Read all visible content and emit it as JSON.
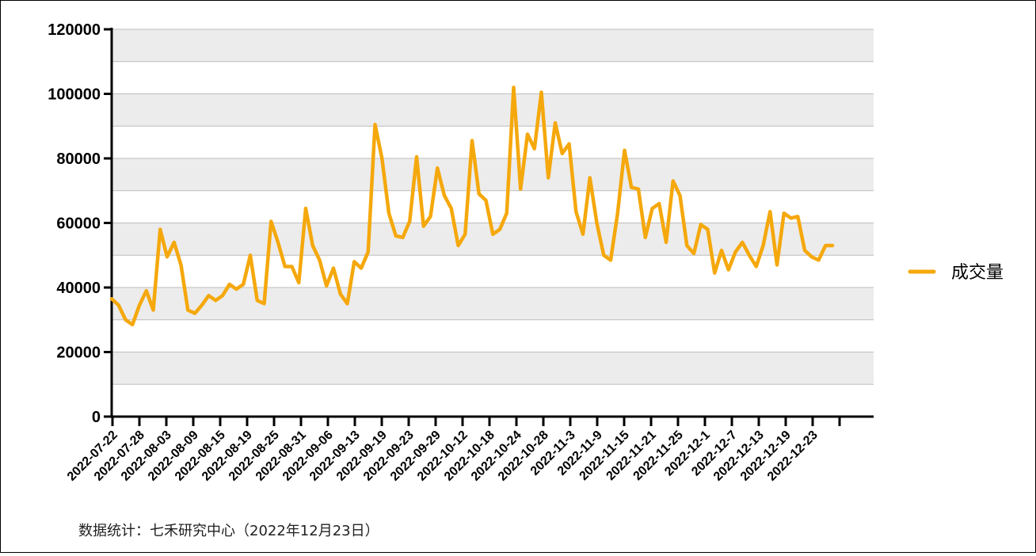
{
  "source_note": "数据统计：七禾研究中心（2022年12月23日）",
  "colors": {
    "line": "#F5A80C",
    "band": "#ECECEC",
    "grid": "#BDBDBD",
    "axis": "#000000"
  },
  "chart_data": {
    "type": "line",
    "title": "",
    "xlabel": "",
    "ylabel": "",
    "ylim": [
      0,
      120000
    ],
    "yticks": [
      0,
      20000,
      40000,
      60000,
      80000,
      100000,
      120000
    ],
    "grid": true,
    "legend_position": "right",
    "x_tick_labels": [
      "2022-07-22",
      "2022-07-28",
      "2022-08-03",
      "2022-08-09",
      "2022-08-15",
      "2022-08-19",
      "2022-08-25",
      "2022-08-31",
      "2022-09-06",
      "2022-09-13",
      "2022-09-19",
      "2022-09-23",
      "2022-09-29",
      "2022-10-12",
      "2022-10-18",
      "2022-10-24",
      "2022-10-28",
      "2022-11-3",
      "2022-11-9",
      "2022-11-15",
      "2022-11-21",
      "2022-11-25",
      "2022-12-1",
      "2022-12-7",
      "2022-12-13",
      "2022-12-19",
      "2022-12-23"
    ],
    "series": [
      {
        "name": "成交量",
        "values": [
          36500,
          34500,
          30000,
          28500,
          34500,
          39000,
          33000,
          58000,
          49500,
          54000,
          47000,
          33000,
          32000,
          34500,
          37500,
          36000,
          37500,
          41000,
          39500,
          41000,
          50000,
          36000,
          35000,
          60500,
          54000,
          46500,
          46500,
          41500,
          64500,
          53000,
          48500,
          40500,
          46000,
          38000,
          35000,
          48000,
          46000,
          51000,
          90500,
          80000,
          63000,
          56000,
          55500,
          60500,
          80500,
          59000,
          62000,
          77000,
          68500,
          64500,
          53000,
          56500,
          85500,
          69000,
          67000,
          56500,
          58000,
          63000,
          102000,
          70500,
          87500,
          83000,
          100500,
          74000,
          91000,
          81500,
          84500,
          63500,
          56500,
          74000,
          60000,
          50000,
          48500,
          63000,
          82500,
          71000,
          70500,
          55500,
          64500,
          66000,
          54000,
          73000,
          68500,
          53000,
          50500,
          59500,
          58000,
          44500,
          51500,
          45500,
          51000,
          54000,
          50000,
          46500,
          53000,
          63500,
          47000,
          63000,
          61500,
          62000,
          51500,
          49500,
          48500,
          53000,
          53000
        ]
      }
    ]
  }
}
